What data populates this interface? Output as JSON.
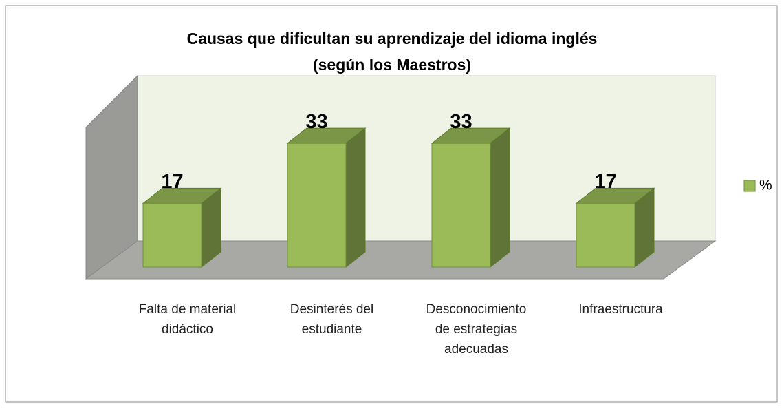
{
  "chart_data": {
    "type": "bar3d",
    "title": [
      "Causas  que dificultan su aprendizaje del idioma inglés",
      "(según los Maestros)"
    ],
    "categories": [
      "Falta de material didáctico",
      "Desinterés del estudiante",
      "Desconocimiento de estrategias adecuadas",
      "Infraestructura"
    ],
    "series": [
      {
        "name": "%",
        "color": "#9bbb59",
        "values": [
          17,
          33,
          33,
          17
        ]
      }
    ],
    "legend": "right"
  }
}
